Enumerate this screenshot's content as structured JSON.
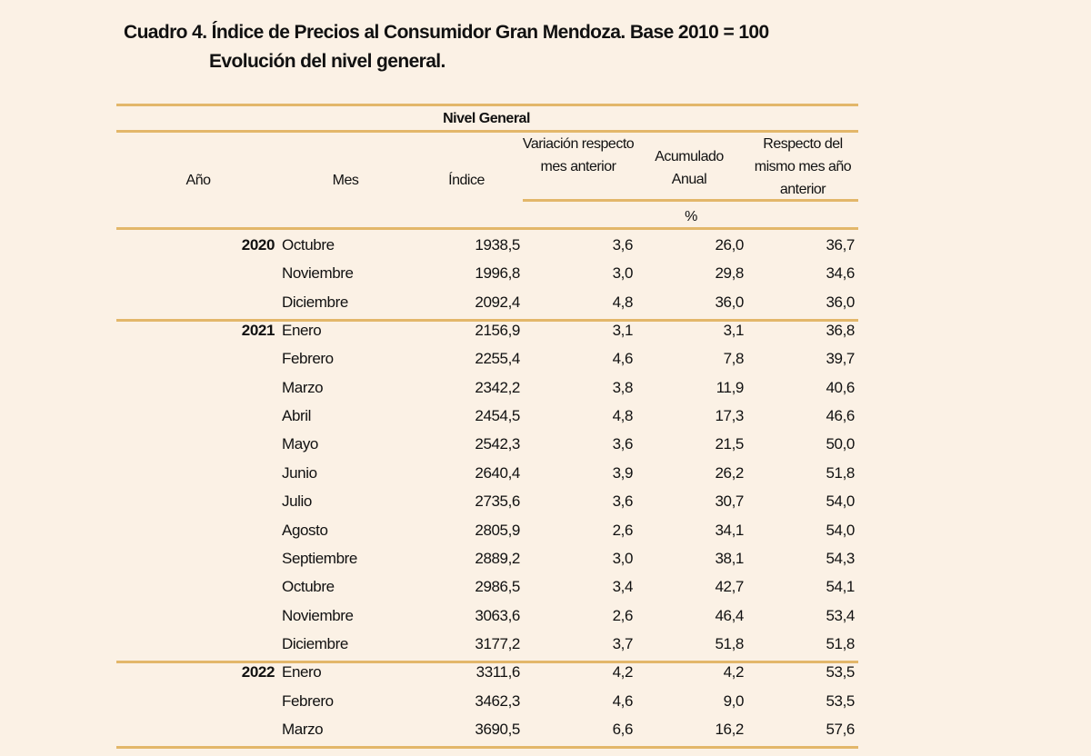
{
  "title": {
    "line1": "Cuadro 4. Índice de Precios al Consumidor Gran Mendoza. Base 2010 = 100",
    "line2": "Evolución del nivel general."
  },
  "table": {
    "group_header": "Nivel General",
    "columns": {
      "year": "Año",
      "month": "Mes",
      "index": "Índice",
      "var_prev_month": "Variación respecto mes anterior",
      "accumulated": "Acumulado Anual",
      "same_month_prev_year": "Respecto del mismo mes año anterior"
    },
    "unit": "%",
    "rows": [
      {
        "year": "2020",
        "month": "Octubre",
        "index": "1938,5",
        "var": "3,6",
        "acc": "26,0",
        "yoy": "36,7"
      },
      {
        "year": "",
        "month": "Noviembre",
        "index": "1996,8",
        "var": "3,0",
        "acc": "29,8",
        "yoy": "34,6"
      },
      {
        "year": "",
        "month": "Diciembre",
        "index": "2092,4",
        "var": "4,8",
        "acc": "36,0",
        "yoy": "36,0"
      },
      {
        "year": "2021",
        "month": "Enero",
        "index": "2156,9",
        "var": "3,1",
        "acc": "3,1",
        "yoy": "36,8"
      },
      {
        "year": "",
        "month": "Febrero",
        "index": "2255,4",
        "var": "4,6",
        "acc": "7,8",
        "yoy": "39,7"
      },
      {
        "year": "",
        "month": "Marzo",
        "index": "2342,2",
        "var": "3,8",
        "acc": "11,9",
        "yoy": "40,6"
      },
      {
        "year": "",
        "month": "Abril",
        "index": "2454,5",
        "var": "4,8",
        "acc": "17,3",
        "yoy": "46,6"
      },
      {
        "year": "",
        "month": "Mayo",
        "index": "2542,3",
        "var": "3,6",
        "acc": "21,5",
        "yoy": "50,0"
      },
      {
        "year": "",
        "month": "Junio",
        "index": "2640,4",
        "var": "3,9",
        "acc": "26,2",
        "yoy": "51,8"
      },
      {
        "year": "",
        "month": "Julio",
        "index": "2735,6",
        "var": "3,6",
        "acc": "30,7",
        "yoy": "54,0"
      },
      {
        "year": "",
        "month": "Agosto",
        "index": "2805,9",
        "var": "2,6",
        "acc": "34,1",
        "yoy": "54,0"
      },
      {
        "year": "",
        "month": "Septiembre",
        "index": "2889,2",
        "var": "3,0",
        "acc": "38,1",
        "yoy": "54,3"
      },
      {
        "year": "",
        "month": "Octubre",
        "index": "2986,5",
        "var": "3,4",
        "acc": "42,7",
        "yoy": "54,1"
      },
      {
        "year": "",
        "month": "Noviembre",
        "index": "3063,6",
        "var": "2,6",
        "acc": "46,4",
        "yoy": "53,4"
      },
      {
        "year": "",
        "month": "Diciembre",
        "index": "3177,2",
        "var": "3,7",
        "acc": "51,8",
        "yoy": "51,8"
      },
      {
        "year": "2022",
        "month": "Enero",
        "index": "3311,6",
        "var": "4,2",
        "acc": "4,2",
        "yoy": "53,5"
      },
      {
        "year": "",
        "month": "Febrero",
        "index": "3462,3",
        "var": "4,6",
        "acc": "9,0",
        "yoy": "53,5"
      },
      {
        "year": "",
        "month": "Marzo",
        "index": "3690,5",
        "var": "6,6",
        "acc": "16,2",
        "yoy": "57,6"
      }
    ]
  },
  "colors": {
    "background": "#fbf1e5",
    "rule": "#e3b76a",
    "text": "#111111"
  }
}
